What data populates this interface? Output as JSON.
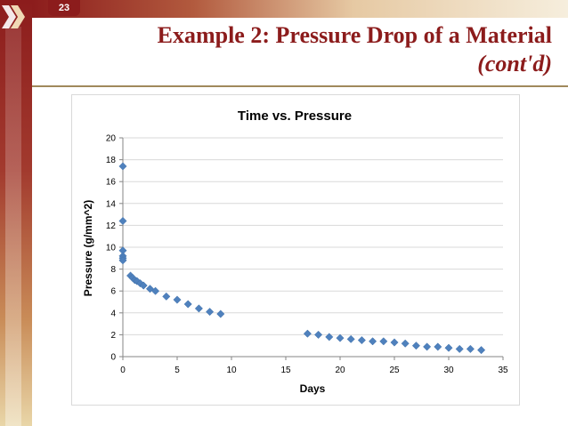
{
  "slide": {
    "number": "23",
    "title_line1": "Example 2: Pressure Drop of a Material",
    "title_line2": "(cont'd)"
  },
  "colors": {
    "accent": "#8c1c1c",
    "marker": "#4f81bd",
    "grid": "#d9d9d9"
  },
  "chart_data": {
    "type": "scatter",
    "title": "Time vs. Pressure",
    "xlabel": "Days",
    "ylabel": "Pressure (g/mm^2)",
    "xlim": [
      0,
      35
    ],
    "ylim": [
      0,
      20
    ],
    "xticks": [
      0,
      5,
      10,
      15,
      20,
      25,
      30,
      35
    ],
    "yticks": [
      0,
      2,
      4,
      6,
      8,
      10,
      12,
      14,
      16,
      18,
      20
    ],
    "grid": true,
    "legend": false,
    "series": [
      {
        "name": "Pressure",
        "marker": "diamond",
        "x": [
          0,
          0,
          0,
          0,
          0,
          0,
          0.7,
          0.9,
          1.1,
          1.3,
          1.6,
          1.9,
          2.5,
          3,
          4,
          5,
          6,
          7,
          8,
          9,
          17,
          18,
          19,
          20,
          21,
          22,
          23,
          24,
          25,
          26,
          27,
          28,
          29,
          30,
          31,
          32,
          33
        ],
        "y": [
          17.4,
          12.4,
          9.7,
          9.2,
          9.0,
          8.8,
          7.4,
          7.2,
          7.0,
          6.9,
          6.7,
          6.5,
          6.2,
          6.0,
          5.5,
          5.2,
          4.8,
          4.4,
          4.1,
          3.9,
          2.1,
          2.0,
          1.8,
          1.7,
          1.6,
          1.5,
          1.4,
          1.4,
          1.3,
          1.2,
          1.0,
          0.9,
          0.9,
          0.8,
          0.7,
          0.7,
          0.6
        ]
      }
    ]
  }
}
